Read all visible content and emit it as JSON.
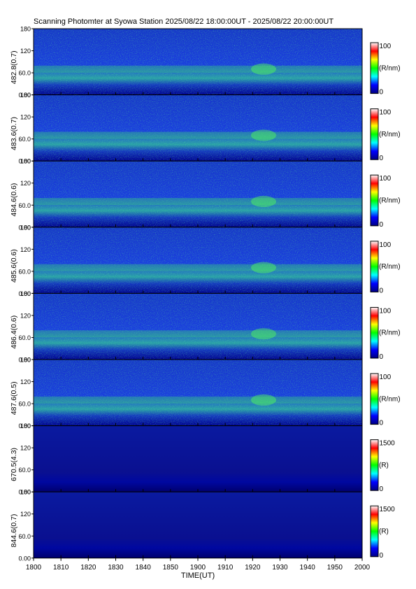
{
  "title": "Scanning Photomter at Syowa Station 2025/08/22 18:00:00UT - 2025/08/22 20:00:00UT",
  "colors": {
    "background_deep": "#000080",
    "background_mid": "#1a3cd8",
    "colorscale": [
      "#000080",
      "#0000ff",
      "#00ffff",
      "#00ff00",
      "#ffff00",
      "#ff0000",
      "#ffffff"
    ]
  },
  "chart_data": {
    "type": "heatmap",
    "xlabel": "TIME(UT)",
    "xlim": [
      1800,
      2000
    ],
    "x_ticks": [
      "1800",
      "1810",
      "1820",
      "1830",
      "1840",
      "1850",
      "1900",
      "1910",
      "1920",
      "1930",
      "1940",
      "1950",
      "2000"
    ],
    "ylim": [
      0,
      180
    ],
    "y_ticks": [
      "180",
      "120",
      "60.0",
      "0.00"
    ],
    "panels": [
      {
        "channel": "482.8(0.7)",
        "colorbar_label": "(R/nm)",
        "colorbar_ticks": [
          "100",
          "0"
        ],
        "cbar_range": [
          0,
          100
        ]
      },
      {
        "channel": "483.6(0.7)",
        "colorbar_label": "(R/nm)",
        "colorbar_ticks": [
          "100",
          "0"
        ],
        "cbar_range": [
          0,
          100
        ]
      },
      {
        "channel": "484.6(0.6)",
        "colorbar_label": "(R/nm)",
        "colorbar_ticks": [
          "100",
          "0"
        ],
        "cbar_range": [
          0,
          100
        ]
      },
      {
        "channel": "485.6(0.6)",
        "colorbar_label": "(R/nm)",
        "colorbar_ticks": [
          "100",
          "0"
        ],
        "cbar_range": [
          0,
          100
        ]
      },
      {
        "channel": "486.4(0.6)",
        "colorbar_label": "(R/nm)",
        "colorbar_ticks": [
          "100",
          "0"
        ],
        "cbar_range": [
          0,
          100
        ]
      },
      {
        "channel": "487.6(0.5)",
        "colorbar_label": "(R/nm)",
        "colorbar_ticks": [
          "100",
          "0"
        ],
        "cbar_range": [
          0,
          100
        ]
      },
      {
        "channel": "670.5(4.3)",
        "colorbar_label": "(R)",
        "colorbar_ticks": [
          "1500",
          "0"
        ],
        "cbar_range": [
          0,
          1500
        ]
      },
      {
        "channel": "844.6(0.7)",
        "colorbar_label": "(R)",
        "colorbar_ticks": [
          "1500",
          "0"
        ],
        "cbar_range": [
          0,
          1500
        ]
      }
    ]
  }
}
